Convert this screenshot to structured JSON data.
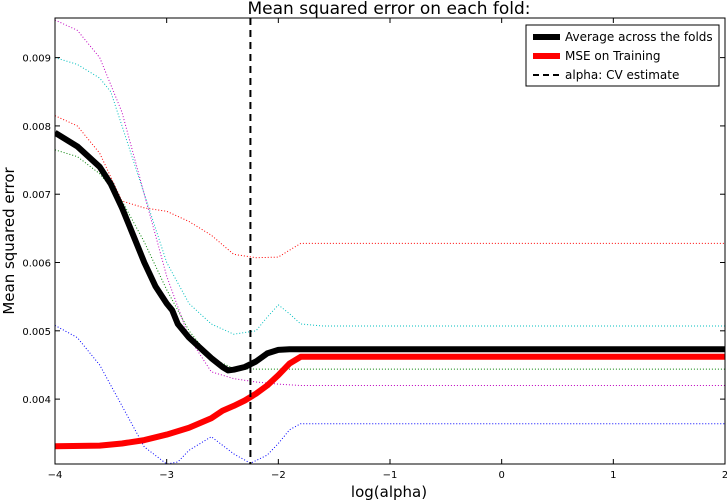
{
  "chart_data": {
    "type": "line",
    "title": "Mean squared error on each fold:",
    "xlabel": "log(alpha)",
    "ylabel": "Mean squared error",
    "xlim": [
      -4,
      2
    ],
    "ylim": [
      0.00305,
      0.00958
    ],
    "xticks": [
      -4,
      -3,
      -2,
      -1,
      0,
      1,
      2
    ],
    "xtick_labels": [
      "−4",
      "−3",
      "−2",
      "−1",
      "0",
      "1",
      "2"
    ],
    "yticks": [
      0.004,
      0.005,
      0.006,
      0.007,
      0.008,
      0.009
    ],
    "ytick_labels": [
      "0.004",
      "0.005",
      "0.006",
      "0.007",
      "0.008",
      "0.009"
    ],
    "grid": false,
    "legend_position": "top-right",
    "cv_alpha_estimate": -2.25,
    "series": [
      {
        "name": "Average across the folds",
        "style": "solid-thick",
        "color": "#000000",
        "points": [
          [
            -4.0,
            0.0079
          ],
          [
            -3.8,
            0.0077
          ],
          [
            -3.6,
            0.0074
          ],
          [
            -3.5,
            0.00715
          ],
          [
            -3.4,
            0.0068
          ],
          [
            -3.3,
            0.0064
          ],
          [
            -3.2,
            0.006
          ],
          [
            -3.1,
            0.00565
          ],
          [
            -3.0,
            0.0054
          ],
          [
            -2.95,
            0.0053
          ],
          [
            -2.9,
            0.0051
          ],
          [
            -2.8,
            0.0049
          ],
          [
            -2.7,
            0.00475
          ],
          [
            -2.6,
            0.0046
          ],
          [
            -2.5,
            0.00447
          ],
          [
            -2.45,
            0.00442
          ],
          [
            -2.4,
            0.00443
          ],
          [
            -2.3,
            0.00447
          ],
          [
            -2.2,
            0.00455
          ],
          [
            -2.1,
            0.00467
          ],
          [
            -2.0,
            0.00472
          ],
          [
            -1.9,
            0.00473
          ],
          [
            -1.8,
            0.00473
          ],
          [
            2.0,
            0.00473
          ]
        ]
      },
      {
        "name": "MSE on Training",
        "style": "solid-thick",
        "color": "#ff0000",
        "points": [
          [
            -4.0,
            0.00331
          ],
          [
            -3.6,
            0.00332
          ],
          [
            -3.4,
            0.00335
          ],
          [
            -3.2,
            0.0034
          ],
          [
            -3.0,
            0.00348
          ],
          [
            -2.8,
            0.00358
          ],
          [
            -2.6,
            0.00372
          ],
          [
            -2.5,
            0.00383
          ],
          [
            -2.4,
            0.0039
          ],
          [
            -2.3,
            0.00398
          ],
          [
            -2.2,
            0.00408
          ],
          [
            -2.1,
            0.0042
          ],
          [
            -2.0,
            0.00435
          ],
          [
            -1.9,
            0.00452
          ],
          [
            -1.8,
            0.00462
          ],
          [
            2.0,
            0.00462
          ]
        ]
      },
      {
        "name": "fold-magenta",
        "style": "dotted",
        "color": "#bf00bf",
        "points": [
          [
            -4.0,
            0.00955
          ],
          [
            -3.8,
            0.0094
          ],
          [
            -3.6,
            0.009
          ],
          [
            -3.4,
            0.0082
          ],
          [
            -3.2,
            0.007
          ],
          [
            -3.0,
            0.0058
          ],
          [
            -2.8,
            0.0049
          ],
          [
            -2.6,
            0.0044
          ],
          [
            -2.4,
            0.0043
          ],
          [
            -2.2,
            0.00425
          ],
          [
            -2.0,
            0.00422
          ],
          [
            -1.8,
            0.0042
          ],
          [
            2.0,
            0.0042
          ]
        ]
      },
      {
        "name": "fold-cyan",
        "style": "dotted",
        "color": "#00bfbf",
        "points": [
          [
            -4.0,
            0.009
          ],
          [
            -3.8,
            0.0089
          ],
          [
            -3.6,
            0.0087
          ],
          [
            -3.5,
            0.0085
          ],
          [
            -3.4,
            0.008
          ],
          [
            -3.2,
            0.007
          ],
          [
            -3.0,
            0.006
          ],
          [
            -2.8,
            0.0054
          ],
          [
            -2.6,
            0.0051
          ],
          [
            -2.4,
            0.00495
          ],
          [
            -2.2,
            0.005
          ],
          [
            -2.1,
            0.0052
          ],
          [
            -2.0,
            0.00538
          ],
          [
            -1.9,
            0.00525
          ],
          [
            -1.8,
            0.0051
          ],
          [
            -1.6,
            0.00507
          ],
          [
            2.0,
            0.00507
          ]
        ]
      },
      {
        "name": "fold-red",
        "style": "dotted",
        "color": "#ff0000",
        "points": [
          [
            -4.0,
            0.00815
          ],
          [
            -3.8,
            0.008
          ],
          [
            -3.6,
            0.0076
          ],
          [
            -3.5,
            0.00725
          ],
          [
            -3.4,
            0.0069
          ],
          [
            -3.2,
            0.0068
          ],
          [
            -3.0,
            0.00675
          ],
          [
            -2.8,
            0.0066
          ],
          [
            -2.6,
            0.0064
          ],
          [
            -2.4,
            0.00612
          ],
          [
            -2.2,
            0.00607
          ],
          [
            -2.0,
            0.00608
          ],
          [
            -1.9,
            0.00618
          ],
          [
            -1.8,
            0.00628
          ],
          [
            2.0,
            0.00628
          ]
        ]
      },
      {
        "name": "fold-green",
        "style": "dotted",
        "color": "#008000",
        "points": [
          [
            -4.0,
            0.00765
          ],
          [
            -3.8,
            0.00755
          ],
          [
            -3.6,
            0.0073
          ],
          [
            -3.4,
            0.0069
          ],
          [
            -3.2,
            0.0063
          ],
          [
            -3.0,
            0.0056
          ],
          [
            -2.8,
            0.005
          ],
          [
            -2.6,
            0.0046
          ],
          [
            -2.4,
            0.00445
          ],
          [
            -2.2,
            0.00444
          ],
          [
            -2.0,
            0.00444
          ],
          [
            2.0,
            0.00444
          ]
        ]
      },
      {
        "name": "fold-blue",
        "style": "dotted",
        "color": "#0000ff",
        "points": [
          [
            -4.0,
            0.00508
          ],
          [
            -3.8,
            0.0049
          ],
          [
            -3.6,
            0.0045
          ],
          [
            -3.4,
            0.0039
          ],
          [
            -3.2,
            0.0033
          ],
          [
            -3.0,
            0.00305
          ],
          [
            -2.9,
            0.00308
          ],
          [
            -2.8,
            0.00325
          ],
          [
            -2.6,
            0.00345
          ],
          [
            -2.4,
            0.0032
          ],
          [
            -2.25,
            0.00306
          ],
          [
            -2.1,
            0.00318
          ],
          [
            -2.0,
            0.00335
          ],
          [
            -1.9,
            0.00355
          ],
          [
            -1.8,
            0.00364
          ],
          [
            2.0,
            0.00364
          ]
        ]
      }
    ],
    "legend": [
      {
        "label": "Average across the folds",
        "color": "#000000",
        "style": "solid-thick"
      },
      {
        "label": "MSE on Training",
        "color": "#ff0000",
        "style": "solid-thick"
      },
      {
        "label": "alpha: CV estimate",
        "color": "#000000",
        "style": "dashed"
      }
    ]
  }
}
